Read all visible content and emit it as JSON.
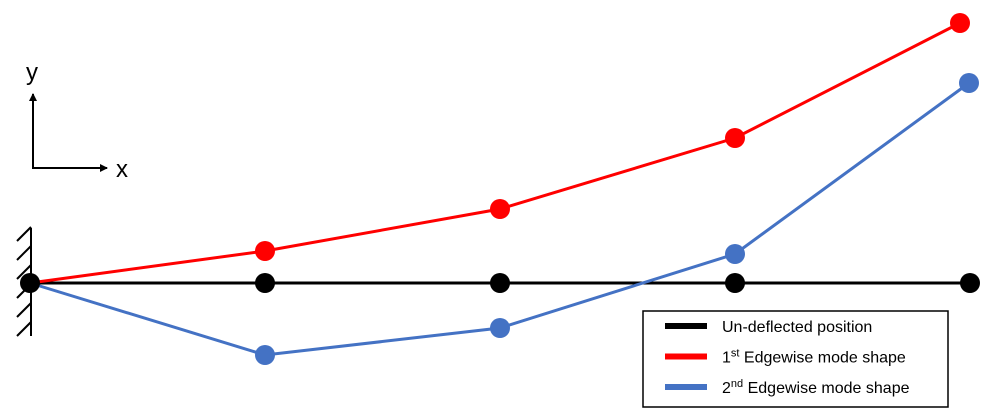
{
  "axes": {
    "y_label": "y",
    "x_label": "x"
  },
  "colors": {
    "undeflected": "#000000",
    "mode1": "#ff0000",
    "mode2": "#4472c4"
  },
  "legend": {
    "items": [
      {
        "key": "undeflected",
        "label": "Un-deflected position",
        "prefix": "",
        "sup": ""
      },
      {
        "key": "mode1",
        "label": " Edgewise mode shape",
        "prefix": "1",
        "sup": "st"
      },
      {
        "key": "mode2",
        "label": " Edgewise mode shape",
        "prefix": "2",
        "sup": "nd"
      }
    ]
  }
}
